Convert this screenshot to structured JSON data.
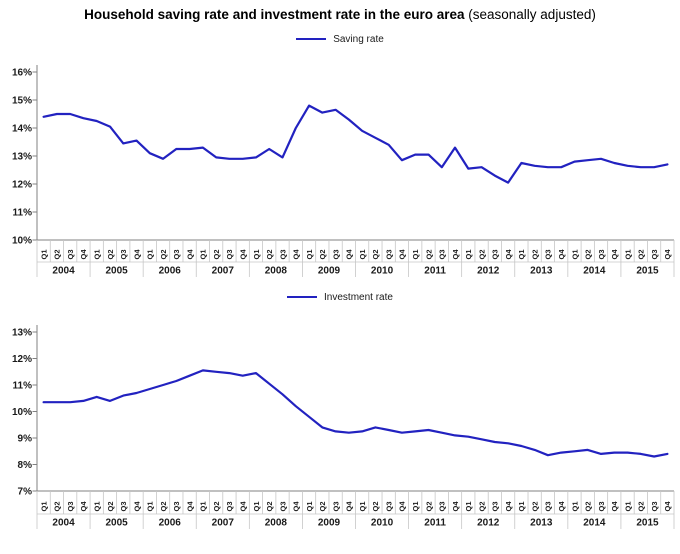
{
  "title": {
    "main": "Household saving rate and investment rate in the euro area",
    "suffix": " (seasonally adjusted)"
  },
  "colors": {
    "line": "#2222C0",
    "axis": "#808080",
    "cell_border": "#C6C6C6",
    "label": "#1a1a1a"
  },
  "chart_data": [
    {
      "type": "line",
      "title": "",
      "legend_position": "top",
      "series": [
        {
          "name": "Saving rate",
          "values": [
            14.4,
            14.5,
            14.5,
            14.35,
            14.25,
            14.05,
            13.45,
            13.55,
            13.1,
            12.9,
            13.25,
            13.25,
            13.3,
            12.95,
            12.9,
            12.9,
            12.95,
            13.25,
            12.95,
            14.0,
            14.8,
            14.55,
            14.65,
            14.3,
            13.9,
            13.65,
            13.4,
            12.85,
            13.05,
            13.05,
            12.6,
            13.3,
            12.55,
            12.6,
            12.3,
            12.05,
            12.75,
            12.65,
            12.6,
            12.6,
            12.8,
            12.85,
            12.9,
            12.75,
            12.65,
            12.6,
            12.6,
            12.7
          ]
        }
      ],
      "categories": [
        "2004 Q1",
        "2004 Q2",
        "2004 Q3",
        "2004 Q4",
        "2005 Q1",
        "2005 Q2",
        "2005 Q3",
        "2005 Q4",
        "2006 Q1",
        "2006 Q2",
        "2006 Q3",
        "2006 Q4",
        "2007 Q1",
        "2007 Q2",
        "2007 Q3",
        "2007 Q4",
        "2008 Q1",
        "2008 Q2",
        "2008 Q3",
        "2008 Q4",
        "2009 Q1",
        "2009 Q2",
        "2009 Q3",
        "2009 Q4",
        "2010 Q1",
        "2010 Q2",
        "2010 Q3",
        "2010 Q4",
        "2011 Q1",
        "2011 Q2",
        "2011 Q3",
        "2011 Q4",
        "2012 Q1",
        "2012 Q2",
        "2012 Q3",
        "2012 Q4",
        "2013 Q1",
        "2013 Q2",
        "2013 Q3",
        "2013 Q4",
        "2014 Q1",
        "2014 Q2",
        "2014 Q3",
        "2014 Q4",
        "2015 Q1",
        "2015 Q2",
        "2015 Q3",
        "2015 Q4"
      ],
      "x_tick_labels": [
        "Q1",
        "Q2",
        "Q3",
        "Q4"
      ],
      "x_group_labels": [
        "2004",
        "2005",
        "2006",
        "2007",
        "2008",
        "2009",
        "2010",
        "2011",
        "2012",
        "2013",
        "2014",
        "2015"
      ],
      "ylim": [
        10,
        16
      ],
      "ytick_step": 1,
      "ytick_labels": [
        "10%",
        "11%",
        "12%",
        "13%",
        "14%",
        "15%",
        "16%"
      ],
      "grid": false
    },
    {
      "type": "line",
      "title": "",
      "legend_position": "top",
      "series": [
        {
          "name": "Investment rate",
          "values": [
            10.35,
            10.35,
            10.35,
            10.4,
            10.55,
            10.4,
            10.6,
            10.7,
            10.85,
            11.0,
            11.15,
            11.35,
            11.55,
            11.5,
            11.45,
            11.35,
            11.45,
            11.05,
            10.65,
            10.2,
            9.8,
            9.4,
            9.25,
            9.2,
            9.25,
            9.4,
            9.3,
            9.2,
            9.25,
            9.3,
            9.2,
            9.1,
            9.05,
            8.95,
            8.85,
            8.8,
            8.7,
            8.55,
            8.35,
            8.45,
            8.5,
            8.55,
            8.4,
            8.45,
            8.45,
            8.4,
            8.3,
            8.4
          ]
        }
      ],
      "categories": [
        "2004 Q1",
        "2004 Q2",
        "2004 Q3",
        "2004 Q4",
        "2005 Q1",
        "2005 Q2",
        "2005 Q3",
        "2005 Q4",
        "2006 Q1",
        "2006 Q2",
        "2006 Q3",
        "2006 Q4",
        "2007 Q1",
        "2007 Q2",
        "2007 Q3",
        "2007 Q4",
        "2008 Q1",
        "2008 Q2",
        "2008 Q3",
        "2008 Q4",
        "2009 Q1",
        "2009 Q2",
        "2009 Q3",
        "2009 Q4",
        "2010 Q1",
        "2010 Q2",
        "2010 Q3",
        "2010 Q4",
        "2011 Q1",
        "2011 Q2",
        "2011 Q3",
        "2011 Q4",
        "2012 Q1",
        "2012 Q2",
        "2012 Q3",
        "2012 Q4",
        "2013 Q1",
        "2013 Q2",
        "2013 Q3",
        "2013 Q4",
        "2014 Q1",
        "2014 Q2",
        "2014 Q3",
        "2014 Q4",
        "2015 Q1",
        "2015 Q2",
        "2015 Q3",
        "2015 Q4"
      ],
      "x_tick_labels": [
        "Q1",
        "Q2",
        "Q3",
        "Q4"
      ],
      "x_group_labels": [
        "2004",
        "2005",
        "2006",
        "2007",
        "2008",
        "2009",
        "2010",
        "2011",
        "2012",
        "2013",
        "2014",
        "2015"
      ],
      "ylim": [
        7,
        13
      ],
      "ytick_step": 1,
      "ytick_labels": [
        "7%",
        "8%",
        "9%",
        "10%",
        "11%",
        "12%",
        "13%"
      ],
      "grid": false
    }
  ]
}
